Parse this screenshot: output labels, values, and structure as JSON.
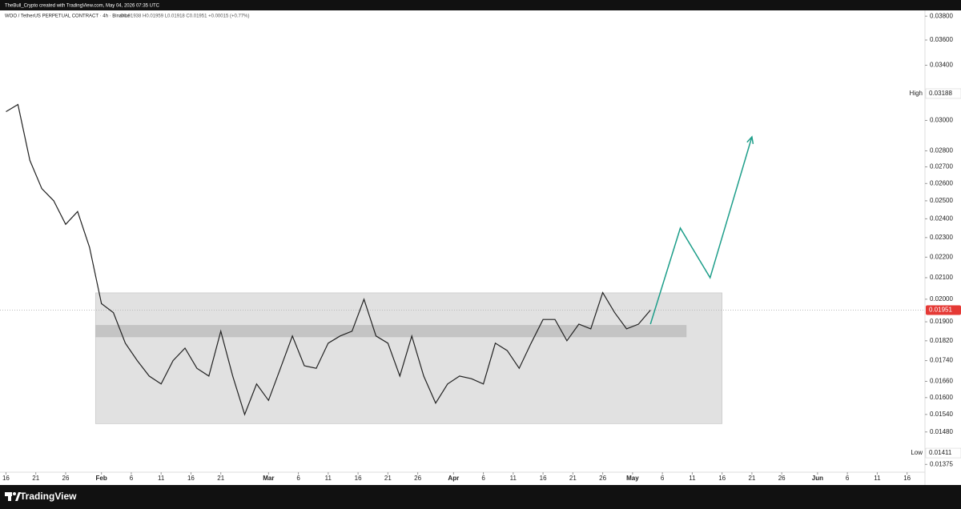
{
  "header": {
    "credit": "TheBull_Crypto created with TradingView.com, May 04, 2026 07:35 UTC"
  },
  "footer": {
    "brand": "TradingView"
  },
  "chart_data": {
    "type": "line",
    "title": "WOO / TetherUS PERPETUAL CONTRACT · 4h · Binance",
    "subtitle": "O0.01938 H0.01959 L0.01918 C0.01951 +0.00015 (+0.77%)",
    "log_scale": true,
    "x": [
      "2026-01-16",
      "2026-01-18",
      "2026-01-20",
      "2026-01-22",
      "2026-01-24",
      "2026-01-26",
      "2026-01-28",
      "2026-01-30",
      "2026-02-01",
      "2026-02-03",
      "2026-02-05",
      "2026-02-07",
      "2026-02-09",
      "2026-02-11",
      "2026-02-13",
      "2026-02-15",
      "2026-02-17",
      "2026-02-19",
      "2026-02-21",
      "2026-02-23",
      "2026-02-25",
      "2026-02-27",
      "2026-03-01",
      "2026-03-03",
      "2026-03-05",
      "2026-03-07",
      "2026-03-09",
      "2026-03-11",
      "2026-03-13",
      "2026-03-15",
      "2026-03-17",
      "2026-03-19",
      "2026-03-21",
      "2026-03-23",
      "2026-03-25",
      "2026-03-27",
      "2026-03-29",
      "2026-03-31",
      "2026-04-02",
      "2026-04-04",
      "2026-04-06",
      "2026-04-08",
      "2026-04-10",
      "2026-04-12",
      "2026-04-14",
      "2026-04-16",
      "2026-04-18",
      "2026-04-20",
      "2026-04-22",
      "2026-04-24",
      "2026-04-26",
      "2026-04-28",
      "2026-04-30",
      "2026-05-02",
      "2026-05-04"
    ],
    "series": [
      {
        "name": "WOO",
        "color": "#222222",
        "values": [
          0.0306,
          0.0311,
          0.0274,
          0.0257,
          0.025,
          0.0237,
          0.0244,
          0.0225,
          0.0198,
          0.0194,
          0.0181,
          0.0174,
          0.0168,
          0.0165,
          0.0174,
          0.0179,
          0.0171,
          0.0168,
          0.0186,
          0.0168,
          0.0154,
          0.0165,
          0.0159,
          0.0171,
          0.0184,
          0.0172,
          0.0171,
          0.0181,
          0.0184,
          0.0186,
          0.02,
          0.0184,
          0.0181,
          0.0168,
          0.0184,
          0.0168,
          0.0158,
          0.0165,
          0.0168,
          0.0167,
          0.0165,
          0.0181,
          0.0178,
          0.0171,
          0.0181,
          0.0191,
          0.0191,
          0.0182,
          0.0189,
          0.0187,
          0.0203,
          0.0194,
          0.0187,
          0.0189,
          0.01951
        ]
      }
    ],
    "projection": {
      "color": "#1e9e8a",
      "x": [
        "2026-05-04",
        "2026-05-09",
        "2026-05-14",
        "2026-05-21"
      ],
      "values": [
        0.0189,
        0.0235,
        0.021,
        0.0289
      ]
    },
    "zones": [
      {
        "color": "#d9d9d9",
        "from": "2026-01-31",
        "to": "2026-05-16",
        "low": 0.01508,
        "high": 0.02029
      },
      {
        "color": "#bdbdbd",
        "from": "2026-01-31",
        "to": "2026-05-10",
        "low": 0.01836,
        "high": 0.01885
      }
    ],
    "markers": [
      {
        "label": "High",
        "value": 0.03188
      },
      {
        "label": "Low",
        "value": 0.01411
      }
    ],
    "last_price": {
      "value": 0.01951,
      "color": "#e53935"
    },
    "xlim": [
      "2026-01-15",
      "2026-06-19"
    ],
    "xticks": [
      {
        "value": "2026-01-16",
        "label": "16"
      },
      {
        "value": "2026-01-21",
        "label": "21"
      },
      {
        "value": "2026-01-26",
        "label": "26"
      },
      {
        "value": "2026-02-01",
        "label": "Feb"
      },
      {
        "value": "2026-02-06",
        "label": "6"
      },
      {
        "value": "2026-02-11",
        "label": "11"
      },
      {
        "value": "2026-02-16",
        "label": "16"
      },
      {
        "value": "2026-02-21",
        "label": "21"
      },
      {
        "value": "2026-03-01",
        "label": "Mar"
      },
      {
        "value": "2026-03-06",
        "label": "6"
      },
      {
        "value": "2026-03-11",
        "label": "11"
      },
      {
        "value": "2026-03-16",
        "label": "16"
      },
      {
        "value": "2026-03-21",
        "label": "21"
      },
      {
        "value": "2026-03-26",
        "label": "26"
      },
      {
        "value": "2026-04-01",
        "label": "Apr"
      },
      {
        "value": "2026-04-06",
        "label": "6"
      },
      {
        "value": "2026-04-11",
        "label": "11"
      },
      {
        "value": "2026-04-16",
        "label": "16"
      },
      {
        "value": "2026-04-21",
        "label": "21"
      },
      {
        "value": "2026-04-26",
        "label": "26"
      },
      {
        "value": "2026-05-01",
        "label": "May"
      },
      {
        "value": "2026-05-06",
        "label": "6"
      },
      {
        "value": "2026-05-11",
        "label": "11"
      },
      {
        "value": "2026-05-16",
        "label": "16"
      },
      {
        "value": "2026-05-21",
        "label": "21"
      },
      {
        "value": "2026-05-26",
        "label": "26"
      },
      {
        "value": "2026-06-01",
        "label": "Jun"
      },
      {
        "value": "2026-06-06",
        "label": "6"
      },
      {
        "value": "2026-06-11",
        "label": "11"
      },
      {
        "value": "2026-06-16",
        "label": "16"
      }
    ],
    "ylim": [
      0.01351,
      0.0385
    ],
    "yticks": [
      {
        "value": 0.038,
        "label": "0.03800"
      },
      {
        "value": 0.036,
        "label": "0.03600"
      },
      {
        "value": 0.034,
        "label": "0.03400"
      },
      {
        "value": 0.03,
        "label": "0.03000"
      },
      {
        "value": 0.028,
        "label": "0.02800"
      },
      {
        "value": 0.027,
        "label": "0.02700"
      },
      {
        "value": 0.026,
        "label": "0.02600"
      },
      {
        "value": 0.025,
        "label": "0.02500"
      },
      {
        "value": 0.024,
        "label": "0.02400"
      },
      {
        "value": 0.023,
        "label": "0.02300"
      },
      {
        "value": 0.022,
        "label": "0.02200"
      },
      {
        "value": 0.021,
        "label": "0.02100"
      },
      {
        "value": 0.02,
        "label": "0.02000"
      },
      {
        "value": 0.019,
        "label": "0.01900"
      },
      {
        "value": 0.0182,
        "label": "0.01820"
      },
      {
        "value": 0.0174,
        "label": "0.01740"
      },
      {
        "value": 0.0166,
        "label": "0.01660"
      },
      {
        "value": 0.016,
        "label": "0.01600"
      },
      {
        "value": 0.0154,
        "label": "0.01540"
      },
      {
        "value": 0.0148,
        "label": "0.01480"
      },
      {
        "value": 0.01375,
        "label": "0.01375"
      }
    ]
  }
}
